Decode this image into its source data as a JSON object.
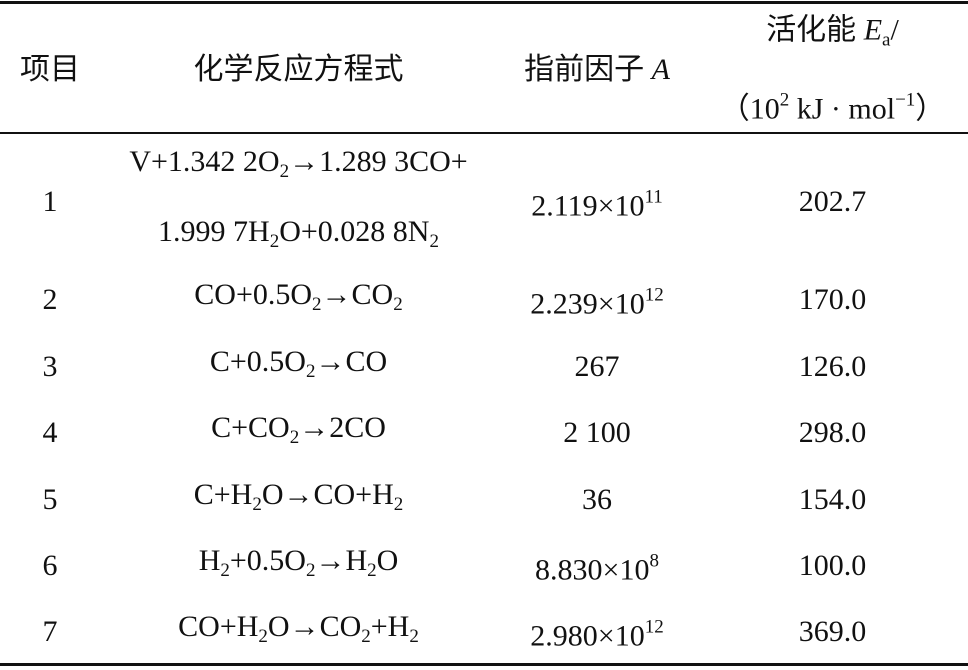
{
  "table": {
    "header": [
      [
        [
          {
            "text": "项目"
          }
        ]
      ],
      [
        [
          {
            "text": "化学反应方程式"
          }
        ]
      ],
      [
        [
          {
            "text": "指前因子 "
          },
          {
            "text": "A",
            "style": "italic"
          }
        ]
      ],
      [
        [
          {
            "text": "活化能 "
          },
          {
            "text": "E",
            "style": "italic"
          },
          {
            "text": "a",
            "style": "sub"
          },
          {
            "text": "/"
          }
        ],
        [
          {
            "text": "（10"
          },
          {
            "text": "2",
            "style": "sup"
          },
          {
            "text": " kJ · mol"
          },
          {
            "text": "−1",
            "style": "sup"
          },
          {
            "text": "）"
          }
        ]
      ]
    ],
    "rows": [
      [
        [
          [
            {
              "text": "1"
            }
          ]
        ],
        [
          [
            {
              "text": "V+1.342 2O"
            },
            {
              "text": "2",
              "style": "sub"
            },
            {
              "text": "→1.289 3CO+"
            }
          ],
          [
            {
              "text": "1.999 7H"
            },
            {
              "text": "2",
              "style": "sub"
            },
            {
              "text": "O+0.028 8N"
            },
            {
              "text": "2",
              "style": "sub"
            }
          ]
        ],
        [
          [
            {
              "text": "2.119×10"
            },
            {
              "text": "11",
              "style": "sup"
            }
          ]
        ],
        [
          [
            {
              "text": "202.7"
            }
          ]
        ]
      ],
      [
        [
          [
            {
              "text": "2"
            }
          ]
        ],
        [
          [
            {
              "text": "CO+0.5O"
            },
            {
              "text": "2",
              "style": "sub"
            },
            {
              "text": "→CO"
            },
            {
              "text": "2",
              "style": "sub"
            }
          ]
        ],
        [
          [
            {
              "text": "2.239×10"
            },
            {
              "text": "12",
              "style": "sup"
            }
          ]
        ],
        [
          [
            {
              "text": "170.0"
            }
          ]
        ]
      ],
      [
        [
          [
            {
              "text": "3"
            }
          ]
        ],
        [
          [
            {
              "text": "C+0.5O"
            },
            {
              "text": "2",
              "style": "sub"
            },
            {
              "text": "→CO"
            }
          ]
        ],
        [
          [
            {
              "text": "267"
            }
          ]
        ],
        [
          [
            {
              "text": "126.0"
            }
          ]
        ]
      ],
      [
        [
          [
            {
              "text": "4"
            }
          ]
        ],
        [
          [
            {
              "text": "C+CO"
            },
            {
              "text": "2",
              "style": "sub"
            },
            {
              "text": "→2CO"
            }
          ]
        ],
        [
          [
            {
              "text": "2 100"
            }
          ]
        ],
        [
          [
            {
              "text": "298.0"
            }
          ]
        ]
      ],
      [
        [
          [
            {
              "text": "5"
            }
          ]
        ],
        [
          [
            {
              "text": "C+H"
            },
            {
              "text": "2",
              "style": "sub"
            },
            {
              "text": "O→CO+H"
            },
            {
              "text": "2",
              "style": "sub"
            }
          ]
        ],
        [
          [
            {
              "text": "36"
            }
          ]
        ],
        [
          [
            {
              "text": "154.0"
            }
          ]
        ]
      ],
      [
        [
          [
            {
              "text": "6"
            }
          ]
        ],
        [
          [
            {
              "text": "H"
            },
            {
              "text": "2",
              "style": "sub"
            },
            {
              "text": "+0.5O"
            },
            {
              "text": "2",
              "style": "sub"
            },
            {
              "text": "→H"
            },
            {
              "text": "2",
              "style": "sub"
            },
            {
              "text": "O"
            }
          ]
        ],
        [
          [
            {
              "text": "8.830×10"
            },
            {
              "text": "8",
              "style": "sup"
            }
          ]
        ],
        [
          [
            {
              "text": "100.0"
            }
          ]
        ]
      ],
      [
        [
          [
            {
              "text": "7"
            }
          ]
        ],
        [
          [
            {
              "text": "CO+H"
            },
            {
              "text": "2",
              "style": "sub"
            },
            {
              "text": "O→CO"
            },
            {
              "text": "2",
              "style": "sub"
            },
            {
              "text": "+H"
            },
            {
              "text": "2",
              "style": "sub"
            }
          ]
        ],
        [
          [
            {
              "text": "2.980×10"
            },
            {
              "text": "12",
              "style": "sup"
            }
          ]
        ],
        [
          [
            {
              "text": "369.0"
            }
          ]
        ]
      ]
    ]
  }
}
